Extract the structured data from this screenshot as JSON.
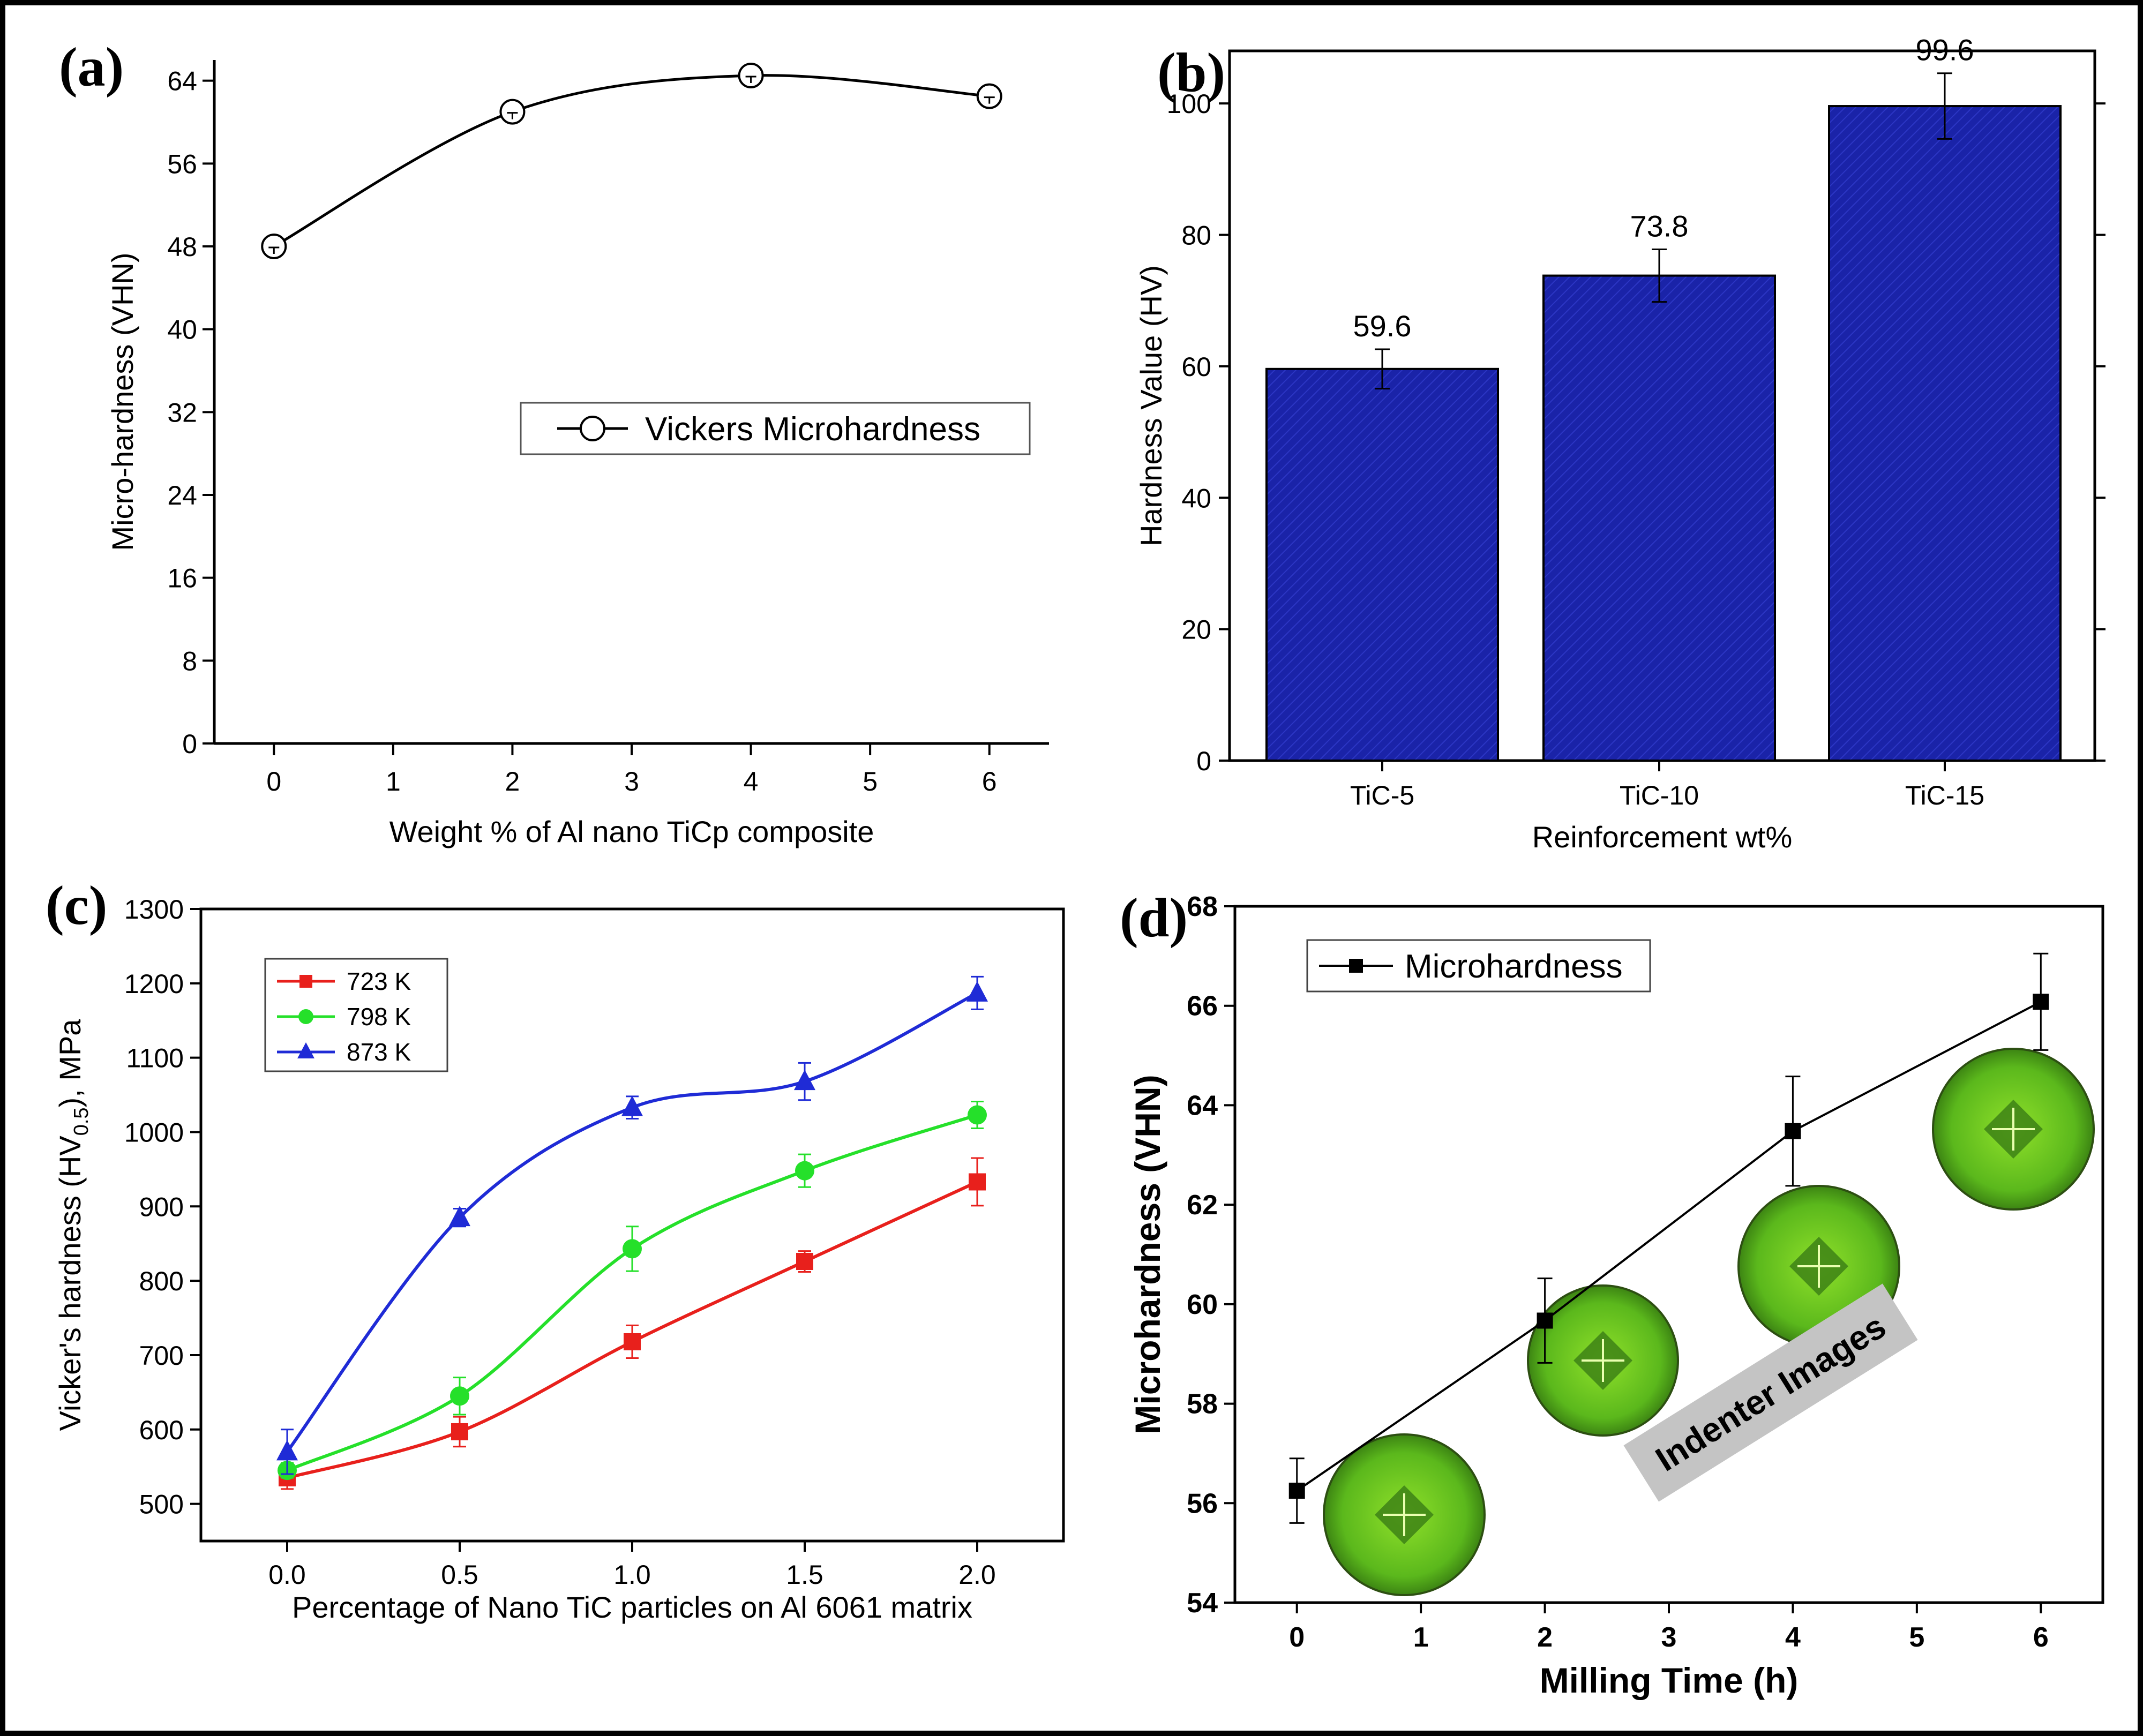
{
  "figure": {
    "border_color": "#000000"
  },
  "chart_data": [
    {
      "panel": "(a)",
      "type": "line",
      "title": "",
      "xlabel": "Weight % of Al nano TiCp composite",
      "ylabel": "Micro-hardness (VHN)",
      "xlim": [
        -0.5,
        6.5
      ],
      "ylim": [
        0,
        66
      ],
      "xticks": [
        0,
        1,
        2,
        3,
        4,
        5,
        6
      ],
      "yticks": [
        0,
        8,
        16,
        24,
        32,
        40,
        48,
        56,
        64
      ],
      "x": [
        0,
        2,
        4,
        6
      ],
      "y": [
        48,
        61,
        64.5,
        62.5
      ],
      "legend": "Vickers Microhardness",
      "legend_position": "center-right",
      "marker": "open-circle",
      "color": "#000000"
    },
    {
      "panel": "(b)",
      "type": "bar",
      "title": "",
      "xlabel": "Reinforcement wt%",
      "ylabel": "Hardness Value (HV)",
      "ylim": [
        0,
        108
      ],
      "yticks": [
        0,
        20,
        40,
        60,
        80,
        100
      ],
      "categories": [
        "TiC-5",
        "TiC-10",
        "TiC-15"
      ],
      "values": [
        59.6,
        73.8,
        99.6
      ],
      "errors": [
        3,
        4,
        5
      ],
      "data_labels": [
        "59.6",
        "73.8",
        "99.6"
      ],
      "bar_color": "#1a23a8"
    },
    {
      "panel": "(c)",
      "type": "line",
      "title": "",
      "xlabel": "Percentage of Nano TiC particles on Al 6061 matrix",
      "ylabel_main": "Vicker's hardness (HV",
      "ylabel_sub": "0.5",
      "ylabel_end": "), MPa",
      "xlim": [
        -0.25,
        2.25
      ],
      "ylim": [
        450,
        1300
      ],
      "xticks": [
        "0.0",
        "0.5",
        "1.0",
        "1.5",
        "2.0"
      ],
      "yticks": [
        500,
        600,
        700,
        800,
        900,
        1000,
        1100,
        1200,
        1300
      ],
      "x": [
        0,
        0.5,
        1,
        1.5,
        2
      ],
      "series": [
        {
          "name": "723 K",
          "values": [
            535,
            597,
            718,
            826,
            933
          ],
          "errors": [
            15,
            20,
            22,
            14,
            32
          ],
          "color": "#e8201c",
          "marker": "square"
        },
        {
          "name": "798 K",
          "values": [
            545,
            645,
            843,
            948,
            1023
          ],
          "errors": [
            10,
            25,
            30,
            22,
            18
          ],
          "color": "#25e02a",
          "marker": "circle"
        },
        {
          "name": "873 K",
          "values": [
            570,
            885,
            1033,
            1068,
            1187
          ],
          "errors": [
            30,
            12,
            15,
            25,
            22
          ],
          "color": "#1f2bd6",
          "marker": "triangle"
        }
      ],
      "legend_position": "top-left"
    },
    {
      "panel": "(d)",
      "type": "line",
      "title": "",
      "xlabel": "Milling Time (h)",
      "ylabel": "Microhardness (VHN)",
      "xlim": [
        -0.5,
        6.5
      ],
      "ylim": [
        54,
        68
      ],
      "xticks": [
        0,
        1,
        2,
        3,
        4,
        5,
        6
      ],
      "yticks": [
        54,
        56,
        58,
        60,
        62,
        64,
        66,
        68
      ],
      "x": [
        0,
        2,
        4,
        6
      ],
      "y": [
        56.25,
        59.67,
        63.48,
        66.08
      ],
      "errors": [
        0.65,
        0.85,
        1.1,
        0.97
      ],
      "legend": "Microhardness",
      "legend_position": "top-left",
      "marker": "filled-square",
      "color": "#000000",
      "annotation": "Indenter Images"
    }
  ]
}
